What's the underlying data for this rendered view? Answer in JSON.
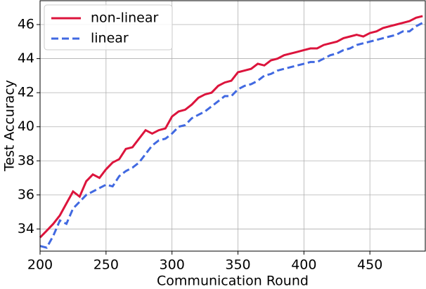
{
  "chart_data": {
    "type": "line",
    "xlabel": "Communication Round",
    "ylabel": "Test Accuracy",
    "x": [
      200,
      205,
      210,
      215,
      220,
      225,
      230,
      235,
      240,
      245,
      250,
      255,
      260,
      265,
      270,
      275,
      280,
      285,
      290,
      295,
      300,
      305,
      310,
      315,
      320,
      325,
      330,
      335,
      340,
      345,
      350,
      355,
      360,
      365,
      370,
      375,
      380,
      385,
      390,
      395,
      400,
      405,
      410,
      415,
      420,
      425,
      430,
      435,
      440,
      445,
      450,
      455,
      460,
      465,
      470,
      475,
      480,
      485,
      490
    ],
    "series": [
      {
        "name": "non-linear",
        "color": "#dc143c",
        "linestyle": "solid",
        "values": [
          33.5,
          33.9,
          34.3,
          34.8,
          35.5,
          36.2,
          35.9,
          36.8,
          37.2,
          37.0,
          37.5,
          37.9,
          38.1,
          38.7,
          38.8,
          39.3,
          39.8,
          39.6,
          39.8,
          39.9,
          40.6,
          40.9,
          41.0,
          41.3,
          41.7,
          41.9,
          42.0,
          42.4,
          42.6,
          42.7,
          43.2,
          43.3,
          43.4,
          43.7,
          43.6,
          43.9,
          44.0,
          44.2,
          44.3,
          44.4,
          44.5,
          44.6,
          44.6,
          44.8,
          44.9,
          45.0,
          45.2,
          45.3,
          45.4,
          45.3,
          45.5,
          45.6,
          45.8,
          45.9,
          46.0,
          46.1,
          46.2,
          46.4,
          46.5
        ]
      },
      {
        "name": "linear",
        "color": "#4169e1",
        "linestyle": "dashed",
        "values": [
          33.0,
          32.9,
          33.6,
          34.5,
          34.3,
          35.2,
          35.6,
          36.0,
          36.2,
          36.4,
          36.6,
          36.5,
          37.1,
          37.4,
          37.6,
          37.9,
          38.4,
          38.9,
          39.2,
          39.3,
          39.6,
          40.0,
          40.1,
          40.5,
          40.7,
          40.9,
          41.2,
          41.5,
          41.8,
          41.8,
          42.2,
          42.4,
          42.5,
          42.7,
          43.0,
          43.1,
          43.3,
          43.4,
          43.5,
          43.6,
          43.7,
          43.8,
          43.8,
          44.0,
          44.2,
          44.3,
          44.5,
          44.6,
          44.8,
          44.9,
          45.0,
          45.1,
          45.2,
          45.3,
          45.4,
          45.6,
          45.6,
          45.9,
          46.1
        ]
      }
    ],
    "xlim": [
      200,
      492
    ],
    "ylim": [
      32.7,
      47.4
    ],
    "xticks": [
      200,
      250,
      300,
      350,
      400,
      450
    ],
    "yticks": [
      34,
      36,
      38,
      40,
      42,
      44,
      46
    ],
    "grid": true,
    "legend": "upper left"
  }
}
